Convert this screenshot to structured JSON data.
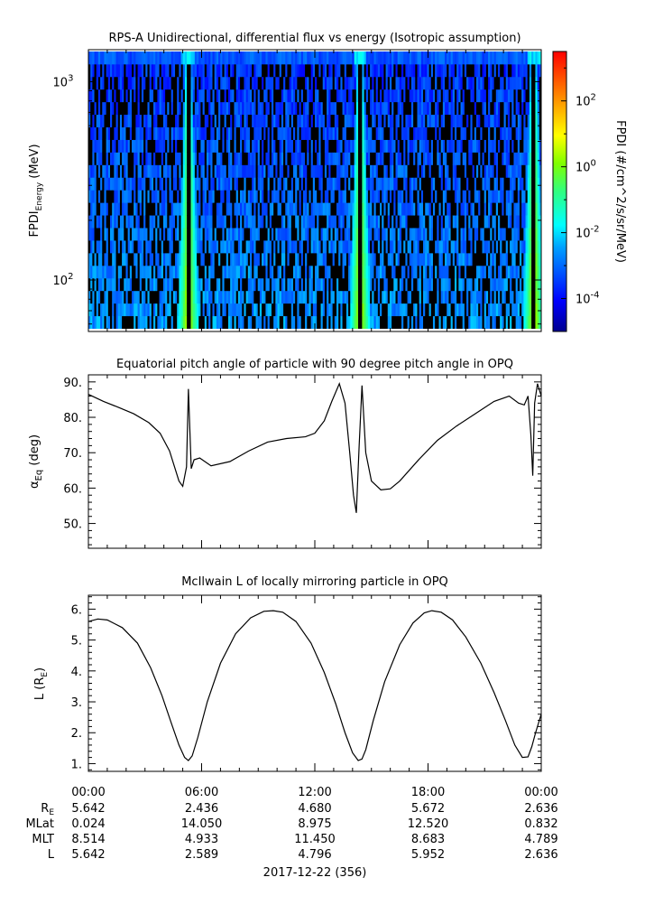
{
  "colors": {
    "axis": "#000000",
    "line": "#000000",
    "background": "#ffffff"
  },
  "chart_data": [
    {
      "type": "heatmap",
      "title": "RPS-A Unidirectional, differential flux vs energy (Isotropic assumption)",
      "ylabel_main": "FPDI",
      "ylabel_sub": "Energy",
      "ylabel_unit": " (MeV)",
      "yscale": "log",
      "ylim": [
        55,
        1450
      ],
      "yticks": [
        {
          "value": 100,
          "base": "10",
          "exp": "2"
        },
        {
          "value": 1000,
          "base": "10",
          "exp": "3"
        }
      ],
      "xlim": [
        0,
        24
      ],
      "colorbar": {
        "label": "FPDI (#/cm^2/s/sr/MeV)",
        "scale": "log",
        "range": [
          -5,
          3.5
        ],
        "ticks": [
          {
            "value": -4,
            "base": "10",
            "exp": "-4"
          },
          {
            "value": -2,
            "base": "10",
            "exp": "-2"
          },
          {
            "value": 0,
            "base": "10",
            "exp": "0"
          },
          {
            "value": 2,
            "base": "10",
            "exp": "2"
          }
        ]
      },
      "perigee_hours": [
        5.3,
        14.4,
        23.6
      ]
    },
    {
      "type": "line",
      "title": "Equatorial pitch angle of particle with 90 degree pitch angle in OPQ",
      "ylabel_main": "α",
      "ylabel_sub": "Eq",
      "ylabel_unit": " (deg)",
      "ylim": [
        43,
        92
      ],
      "yticks": [
        {
          "value": 50,
          "label": "50."
        },
        {
          "value": 60,
          "label": "60."
        },
        {
          "value": 70,
          "label": "70."
        },
        {
          "value": 80,
          "label": "80."
        },
        {
          "value": 90,
          "label": "90."
        }
      ],
      "xlim": [
        0,
        24
      ],
      "x": [
        0,
        0.8,
        1.6,
        2.4,
        3.2,
        3.8,
        4.3,
        4.8,
        5.0,
        5.2,
        5.3,
        5.45,
        5.6,
        5.9,
        6.5,
        7.5,
        8.5,
        9.5,
        10.5,
        11.5,
        12.0,
        12.5,
        12.9,
        13.3,
        13.6,
        13.85,
        14.05,
        14.2,
        14.35,
        14.5,
        14.7,
        15.0,
        15.5,
        16.0,
        16.5,
        17.5,
        18.5,
        19.5,
        20.5,
        21.5,
        22.3,
        22.8,
        23.1,
        23.3,
        23.45,
        23.55,
        23.65,
        23.8,
        24.0
      ],
      "y": [
        86.5,
        84.5,
        82.8,
        81.0,
        78.5,
        75.5,
        70.5,
        62.0,
        60.5,
        66.0,
        88.0,
        65.5,
        68.0,
        68.5,
        66.3,
        67.5,
        70.5,
        73.0,
        74.0,
        74.5,
        75.5,
        79.0,
        84.5,
        89.5,
        84.0,
        70.0,
        58.0,
        53.0,
        72.0,
        89.0,
        70.0,
        62.0,
        59.5,
        59.8,
        62.0,
        68.0,
        73.5,
        77.5,
        81.0,
        84.5,
        86.0,
        84.0,
        83.5,
        86.0,
        75.0,
        63.5,
        84.0,
        89.5,
        86.0
      ]
    },
    {
      "type": "line",
      "title": "McIlwain L of locally mirroring particle in OPQ",
      "ylabel_main": "L (R",
      "ylabel_sub": "E",
      "ylabel_unit": ")",
      "ylim": [
        0.75,
        6.45
      ],
      "yticks": [
        {
          "value": 1,
          "label": "1."
        },
        {
          "value": 2,
          "label": "2."
        },
        {
          "value": 3,
          "label": "3."
        },
        {
          "value": 4,
          "label": "4."
        },
        {
          "value": 5,
          "label": "5."
        },
        {
          "value": 6,
          "label": "6."
        }
      ],
      "xlim": [
        0,
        24
      ],
      "x": [
        0,
        0.5,
        1.0,
        1.8,
        2.6,
        3.3,
        3.9,
        4.4,
        4.8,
        5.1,
        5.3,
        5.5,
        5.8,
        6.3,
        7.0,
        7.8,
        8.6,
        9.3,
        9.8,
        10.3,
        11.0,
        11.8,
        12.5,
        13.1,
        13.6,
        14.0,
        14.3,
        14.5,
        14.7,
        15.1,
        15.7,
        16.5,
        17.2,
        17.8,
        18.2,
        18.7,
        19.3,
        20.0,
        20.8,
        21.5,
        22.1,
        22.6,
        23.0,
        23.3,
        23.5,
        23.7,
        24.0
      ],
      "y": [
        5.6,
        5.68,
        5.65,
        5.4,
        4.9,
        4.1,
        3.2,
        2.3,
        1.6,
        1.2,
        1.1,
        1.25,
        1.85,
        3.0,
        4.25,
        5.2,
        5.72,
        5.93,
        5.95,
        5.9,
        5.6,
        4.9,
        3.95,
        2.95,
        2.0,
        1.35,
        1.1,
        1.15,
        1.45,
        2.4,
        3.65,
        4.85,
        5.55,
        5.88,
        5.95,
        5.9,
        5.65,
        5.1,
        4.25,
        3.3,
        2.4,
        1.6,
        1.2,
        1.22,
        1.55,
        2.0,
        2.6
      ]
    }
  ],
  "time_axis": {
    "ticks": [
      {
        "hour": 0,
        "label": "00:00"
      },
      {
        "hour": 6,
        "label": "06:00"
      },
      {
        "hour": 12,
        "label": "12:00"
      },
      {
        "hour": 18,
        "label": "18:00"
      },
      {
        "hour": 24,
        "label": "00:00"
      }
    ],
    "date_label": "2017-12-22 (356)"
  },
  "ephemeris": {
    "rows": [
      {
        "label_main": "R",
        "label_sub": "E",
        "values": [
          "5.642",
          "2.436",
          "4.680",
          "5.672",
          "2.636"
        ]
      },
      {
        "label_main": "MLat",
        "label_sub": "",
        "values": [
          "0.024",
          "14.050",
          "8.975",
          "12.520",
          "0.832"
        ]
      },
      {
        "label_main": "MLT",
        "label_sub": "",
        "values": [
          "8.514",
          "4.933",
          "11.450",
          "8.683",
          "4.789"
        ]
      },
      {
        "label_main": "L",
        "label_sub": "",
        "values": [
          "5.642",
          "2.589",
          "4.796",
          "5.952",
          "2.636"
        ]
      }
    ]
  }
}
